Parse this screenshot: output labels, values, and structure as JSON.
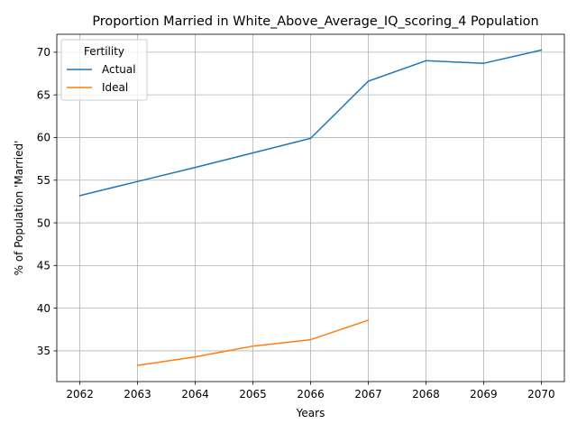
{
  "chart_data": {
    "type": "line",
    "title": "Proportion Married in White_Above_Average_IQ_scoring_4 Population",
    "xlabel": "Years",
    "ylabel": "% of Population 'Married'",
    "xlim": [
      2061.6,
      2070.4
    ],
    "ylim": [
      31.4,
      72.1
    ],
    "x_ticks": [
      2062,
      2063,
      2064,
      2065,
      2066,
      2067,
      2068,
      2069,
      2070
    ],
    "y_ticks": [
      35,
      40,
      45,
      50,
      55,
      60,
      65,
      70
    ],
    "grid": true,
    "legend": {
      "title": "Fertility",
      "placement": "top-left"
    },
    "series": [
      {
        "name": "Actual",
        "color": "#1f77b4",
        "x": [
          2062,
          2063,
          2064,
          2065,
          2066,
          2067,
          2068,
          2069,
          2070
        ],
        "values": [
          53.2,
          54.85,
          56.5,
          58.2,
          59.9,
          66.6,
          69.0,
          68.7,
          70.25
        ]
      },
      {
        "name": "Ideal",
        "color": "#ff7f0e",
        "x": [
          2063,
          2064,
          2065,
          2066,
          2067
        ],
        "values": [
          33.3,
          34.3,
          35.55,
          36.3,
          38.6
        ]
      }
    ]
  }
}
